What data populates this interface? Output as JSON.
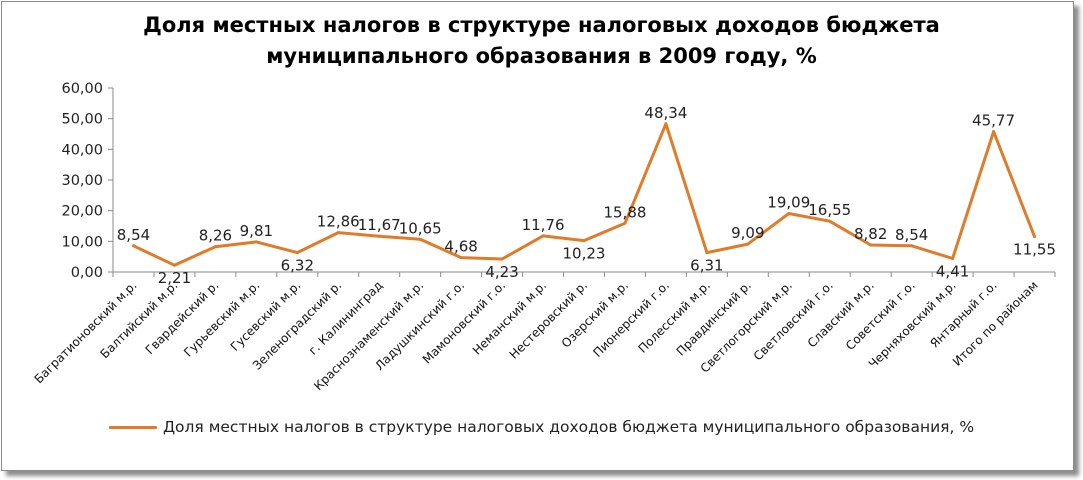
{
  "chart_data": {
    "type": "line",
    "title_lines": [
      "Доля местных налогов в структуре налоговых доходов бюджета",
      "муниципального образования в 2009 году, %"
    ],
    "categories": [
      "Багратионовский м.р.",
      "Балтийский м.р.",
      "Гвардейский р.",
      "Гурьевский м.р.",
      "Гусевский м.р.",
      "Зеленоградский р.",
      "г. Калининград",
      "Краснознаменский м.р.",
      "Ладушкинский г.о.",
      "Мамоновский г.о.",
      "Неманский м.р.",
      "Нестеровский р.",
      "Озерский м.р.",
      "Пионерский г.о.",
      "Полесский м.р.",
      "Правдинский р.",
      "Светлогорский м.р.",
      "Светловский г.о.",
      "Славский м.р.",
      "Советский г.о.",
      "Черняховский м.р.",
      "Янтарный г.о.",
      "Итого по районам"
    ],
    "series": [
      {
        "name": "Доля местных налогов в структуре налоговых доходов бюджета муниципального образования, %",
        "values": [
          8.54,
          2.21,
          8.26,
          9.81,
          6.32,
          12.86,
          11.67,
          10.65,
          4.68,
          4.23,
          11.76,
          10.23,
          15.88,
          48.34,
          6.31,
          9.09,
          19.09,
          16.55,
          8.82,
          8.54,
          4.41,
          45.77,
          11.55
        ],
        "labels": [
          "8,54",
          "2,21",
          "8,26",
          "9,81",
          "6,32",
          "12,86",
          "11,67",
          "10,65",
          "4,68",
          "4,23",
          "11,76",
          "10,23",
          "15,88",
          "48,34",
          "6,31",
          "9,09",
          "19,09",
          "16,55",
          "8,82",
          "8,54",
          "4,41",
          "45,77",
          "11,55"
        ],
        "color": "#e07b2a"
      }
    ],
    "ylim": [
      0,
      60
    ],
    "y_ticks": [
      "0,00",
      "10,00",
      "20,00",
      "30,00",
      "40,00",
      "50,00",
      "60,00"
    ],
    "grid": false,
    "legend_position": "bottom"
  }
}
